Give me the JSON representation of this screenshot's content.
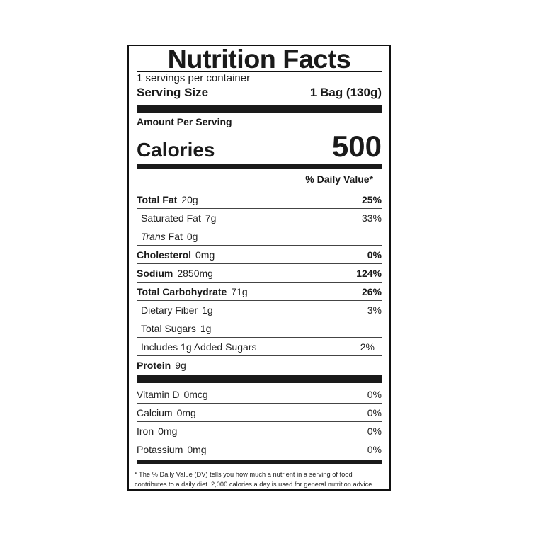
{
  "title": "Nutrition Facts",
  "servings_per_container": "1 servings per container",
  "serving_size_label": "Serving Size",
  "serving_size_value": "1 Bag (130g)",
  "amount_per_serving": "Amount Per Serving",
  "calories_label": "Calories",
  "calories_value": "500",
  "daily_value_header": "% Daily Value*",
  "nutrients": [
    {
      "name": "Total Fat",
      "amount": "20g",
      "dv": "25%",
      "bold": true,
      "indent": false
    },
    {
      "name": "Saturated Fat",
      "amount": "7g",
      "dv": "33%",
      "bold": false,
      "indent": true
    },
    {
      "name": "Trans Fat",
      "amount": "0g",
      "dv": "",
      "bold": false,
      "indent": true
    },
    {
      "name": "Cholesterol",
      "amount": "0mg",
      "dv": "0%",
      "bold": true,
      "indent": false
    },
    {
      "name": "Sodium",
      "amount": "2850mg",
      "dv": "124%",
      "bold": true,
      "indent": false
    },
    {
      "name": "Total Carbohydrate",
      "amount": "71g",
      "dv": "26%",
      "bold": true,
      "indent": false
    },
    {
      "name": "Dietary Fiber",
      "amount": "1g",
      "dv": "3%",
      "bold": false,
      "indent": true
    },
    {
      "name": "Total Sugars",
      "amount": "1g",
      "dv": "",
      "bold": false,
      "indent": true
    },
    {
      "name": "Includes 1g Added Sugars",
      "amount": "",
      "dv": "2%",
      "bold": false,
      "indent": true
    },
    {
      "name": "Protein",
      "amount": "9g",
      "dv": "",
      "bold": true,
      "indent": false
    }
  ],
  "vitamins": [
    {
      "name": "Vitamin D",
      "amount": "0mcg",
      "dv": "0%"
    },
    {
      "name": "Calcium",
      "amount": "0mg",
      "dv": "0%"
    },
    {
      "name": "Iron",
      "amount": "0mg",
      "dv": "0%"
    },
    {
      "name": "Potassium",
      "amount": "0mg",
      "dv": "0%"
    }
  ],
  "footnote": "* The % Daily Value (DV) tells you how much a nutrient in a serving of food contributes to a daily diet. 2,000 calories a day is used for general nutrition advice."
}
